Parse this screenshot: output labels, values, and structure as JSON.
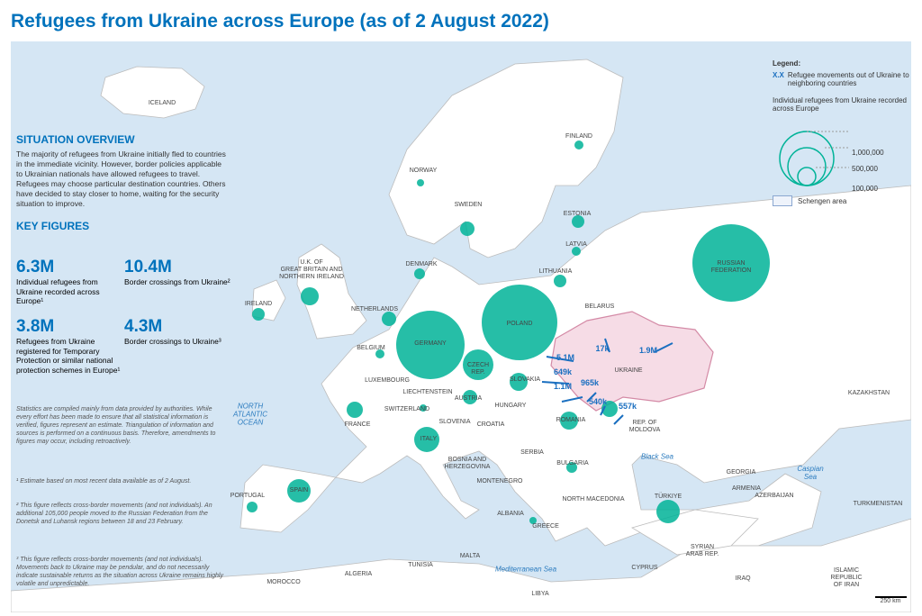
{
  "title": "Refugees from Ukraine across Europe (as of 2 August 2022)",
  "overview": {
    "heading": "SITUATION OVERVIEW",
    "text": "The majority of refugees from Ukraine initially fled to countries in the immediate vicinity. However, border policies applicable to Ukrainian nationals have allowed refugees to travel. Refugees may choose particular destination countries. Others have decided to stay closer to home, waiting for the security situation to improve."
  },
  "key_figures": {
    "heading": "KEY FIGURES",
    "items": [
      {
        "value": "6.3M",
        "label": "Individual refugees from Ukraine recorded across Europe¹"
      },
      {
        "value": "10.4M",
        "label": "Border crossings from Ukraine²"
      },
      {
        "value": "3.8M",
        "label": "Refugees from Ukraine registered for Temporary Protection or similar national protection schemes in Europe¹"
      },
      {
        "value": "4.3M",
        "label": "Border crossings to Ukraine³"
      }
    ]
  },
  "notes": [
    "Statistics are compiled mainly from data provided by authorities. While every effort has been made to ensure that all statistical information is verified, figures represent an estimate. Triangulation of information and sources is performed on a continuous basis. Therefore, amendments to figures may occur, including retroactively.",
    "¹ Estimate based on most recent data available as of 2 August.",
    "² This figure reflects cross-border movements (and not individuals). An additional 105,000 people moved to the Russian Federation from the Donetsk and Luhansk regions between 18 and 23 February.",
    "³ This figure reflects cross-border movements (and not individuals). Movements back to Ukraine may be pendular, and do not necessarily indicate sustainable returns as the situation across Ukraine remains highly volatile and unpredictable."
  ],
  "legend": {
    "title": "Legend:",
    "arrow_symbol": "x.x",
    "movements": "Refugee movements out of Ukraine to neighboring countries",
    "circles_title": "Individual refugees from Ukraine recorded across Europe",
    "sizes": [
      "1,000,000",
      "500,000",
      "100,000"
    ],
    "schengen": "Schengen area"
  },
  "map_labels": [
    "ICELAND",
    "FINLAND",
    "NORWAY",
    "SWEDEN",
    "ESTONIA",
    "LATVIA",
    "DENMARK",
    "LITHUANIA",
    "U.K. OF\nGREAT BRITAIN AND\nNORTHERN IRELAND",
    "IRELAND",
    "NETHERLANDS",
    "POLAND",
    "GERMANY",
    "BELARUS",
    "RUSSIAN\nFEDERATION",
    "BELGIUM",
    "CZECH\nREP.",
    "UKRAINE",
    "LUXEMBOURG",
    "SLOVAKIA",
    "LIECHTENSTEIN",
    "AUSTRIA",
    "HUNGARY",
    "SWITZERLAND",
    "FRANCE",
    "SLOVENIA",
    "CROATIA",
    "ROMANIA",
    "REP. OF\nMOLDOVA",
    "ITALY",
    "SERBIA",
    "BOSNIA AND\nHERZEGOVINA",
    "BULGARIA",
    "MONTENEGRO",
    "GEORGIA",
    "ARMENIA",
    "AZERBAIJAN",
    "TÜRKIYE",
    "PORTUGAL",
    "SPAIN",
    "NORTH MACEDONIA",
    "ALBANIA",
    "GREECE",
    "KAZAKHSTAN",
    "TURKMENISTAN",
    "SYRIAN\nARAB REP.",
    "CYPRUS",
    "MALTA",
    "ALGERIA",
    "TUNISIA",
    "MOROCCO",
    "LIBYA",
    "IRAQ",
    "ISLAMIC\nREPUBLIC\nOF IRAN"
  ],
  "sea_labels": [
    "NORTH\nATLANTIC\nOCEAN",
    "Black Sea",
    "Caspian\nSea",
    "Mediterranean Sea"
  ],
  "flows": [
    "5.1M",
    "649k",
    "1.1M",
    "965k",
    "540k",
    "557k",
    "17k",
    "1.9M"
  ],
  "scale": "250 km"
}
